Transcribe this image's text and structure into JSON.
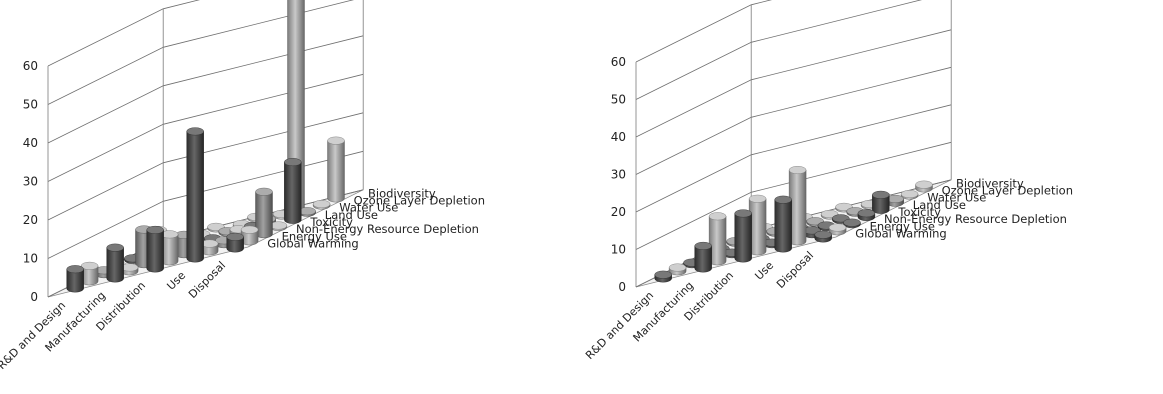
{
  "palette": {
    "dark": "#444444",
    "mid": "#8c8c8c",
    "light": "#bdbdbd"
  },
  "chart_data": [
    {
      "type": "bar3d",
      "title": "",
      "ylim": [
        0,
        60
      ],
      "z_ticks": [
        "0",
        "10",
        "20",
        "30",
        "40",
        "50",
        "60"
      ],
      "categories": [
        "R&D and Design",
        "Manufacturing",
        "Distribution",
        "Use",
        "Disposal"
      ],
      "series": [
        {
          "name": "Global Warming",
          "tone": "dark",
          "values": [
            5,
            8,
            10,
            33,
            3
          ]
        },
        {
          "name": "Energy Use",
          "tone": "light",
          "values": [
            4,
            1,
            7,
            2,
            3
          ]
        },
        {
          "name": "Non-Energy Resource Depletion",
          "tone": "mid",
          "values": [
            1,
            9,
            5,
            1,
            11
          ]
        },
        {
          "name": "Toxicity",
          "tone": "light",
          "values": [
            0,
            7,
            0,
            2,
            0
          ]
        },
        {
          "name": "Land Use",
          "tone": "dark",
          "values": [
            0,
            0,
            0,
            1,
            15
          ]
        },
        {
          "name": "Water Use",
          "tone": "mid",
          "values": [
            0,
            0,
            0,
            1,
            0
          ]
        },
        {
          "name": "Ozone Layer Depletion",
          "tone": "light",
          "values": [
            0,
            0,
            0,
            0,
            0
          ]
        },
        {
          "name": "Biodiversity",
          "tone": "light",
          "values": [
            0,
            0,
            0,
            63,
            15
          ]
        }
      ]
    },
    {
      "type": "bar3d",
      "title": "",
      "ylim": [
        0,
        60
      ],
      "z_ticks": [
        "0",
        "10",
        "20",
        "30",
        "40",
        "50",
        "60"
      ],
      "categories": [
        "R&D and Design",
        "Manufacturing",
        "Distribution",
        "Use",
        "Disposal"
      ],
      "series": [
        {
          "name": "Global Warming",
          "tone": "dark",
          "values": [
            1,
            6,
            12,
            13,
            1
          ]
        },
        {
          "name": "Energy Use",
          "tone": "light",
          "values": [
            1,
            12,
            14,
            19,
            1
          ]
        },
        {
          "name": "Non-Energy Resource Depletion",
          "tone": "dark",
          "values": [
            0,
            0,
            0,
            1,
            0
          ]
        },
        {
          "name": "Toxicity",
          "tone": "dark",
          "values": [
            0,
            0,
            0,
            0,
            1
          ]
        },
        {
          "name": "Land Use",
          "tone": "dark",
          "values": [
            0,
            0,
            0,
            0,
            4
          ]
        },
        {
          "name": "Water Use",
          "tone": "mid",
          "values": [
            0,
            0,
            0,
            0,
            1
          ]
        },
        {
          "name": "Ozone Layer Depletion",
          "tone": "light",
          "values": [
            0,
            0,
            0,
            0,
            0
          ]
        },
        {
          "name": "Biodiversity",
          "tone": "light",
          "values": [
            0,
            0,
            0,
            0,
            1
          ]
        }
      ]
    }
  ]
}
